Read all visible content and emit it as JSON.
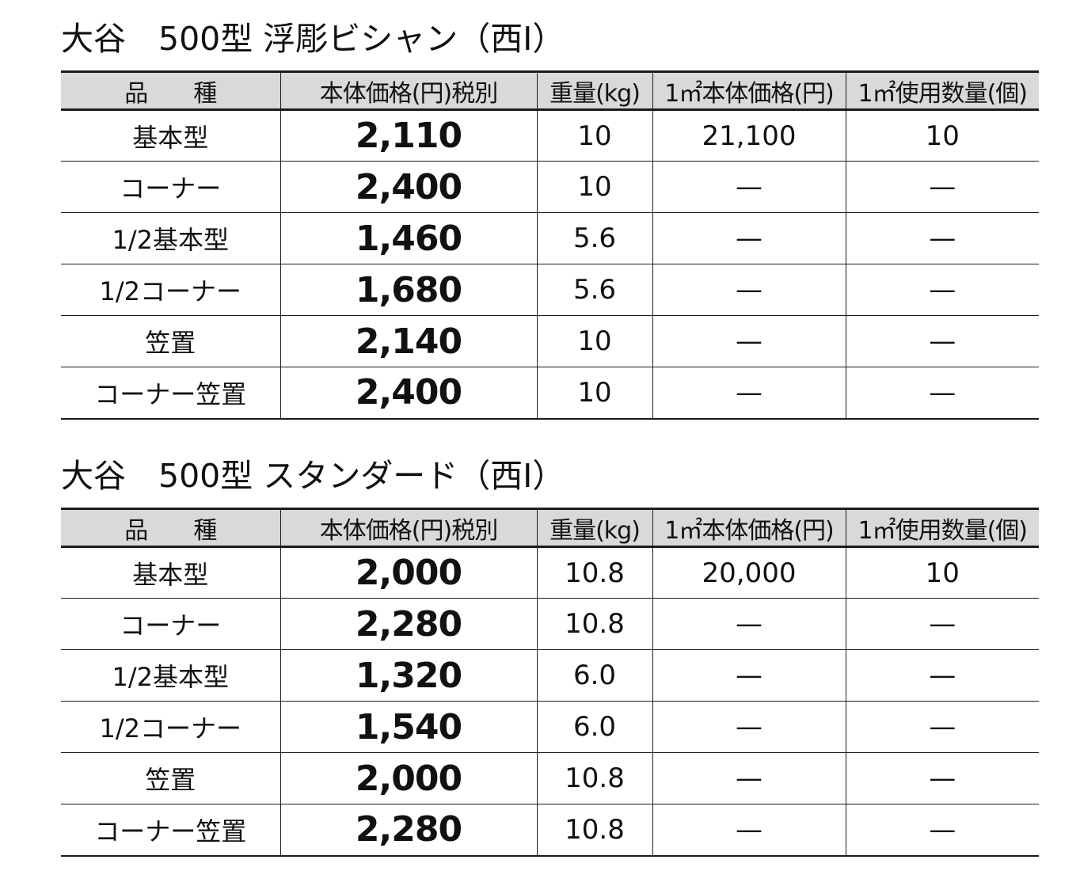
{
  "sections": [
    {
      "title": "大谷　500型 浮彫ビシャン（西Ⅰ）",
      "headers": [
        "品　　種",
        "本体価格(円)税別",
        "重量(kg)",
        "1㎡本体価格(円)",
        "1㎡使用数量(個)"
      ],
      "rows": [
        {
          "name": "基本型",
          "price": "2,110",
          "weight": "10",
          "per_m2_price": "21,100",
          "per_m2_qty": "10"
        },
        {
          "name": "コーナー",
          "price": "2,400",
          "weight": "10",
          "per_m2_price": "—",
          "per_m2_qty": "—"
        },
        {
          "name": "1/2基本型",
          "price": "1,460",
          "weight": "5.6",
          "per_m2_price": "—",
          "per_m2_qty": "—"
        },
        {
          "name": "1/2コーナー",
          "price": "1,680",
          "weight": "5.6",
          "per_m2_price": "—",
          "per_m2_qty": "—"
        },
        {
          "name": "笠置",
          "price": "2,140",
          "weight": "10",
          "per_m2_price": "—",
          "per_m2_qty": "—"
        },
        {
          "name": "コーナー笠置",
          "price": "2,400",
          "weight": "10",
          "per_m2_price": "—",
          "per_m2_qty": "—"
        }
      ]
    },
    {
      "title": "大谷　500型 スタンダード（西Ⅰ）",
      "headers": [
        "品　　種",
        "本体価格(円)税別",
        "重量(kg)",
        "1㎡本体価格(円)",
        "1㎡使用数量(個)"
      ],
      "rows": [
        {
          "name": "基本型",
          "price": "2,000",
          "weight": "10.8",
          "per_m2_price": "20,000",
          "per_m2_qty": "10"
        },
        {
          "name": "コーナー",
          "price": "2,280",
          "weight": "10.8",
          "per_m2_price": "—",
          "per_m2_qty": "—"
        },
        {
          "name": "1/2基本型",
          "price": "1,320",
          "weight": "6.0",
          "per_m2_price": "—",
          "per_m2_qty": "—"
        },
        {
          "name": "1/2コーナー",
          "price": "1,540",
          "weight": "6.0",
          "per_m2_price": "—",
          "per_m2_qty": "—"
        },
        {
          "name": "笠置",
          "price": "2,000",
          "weight": "10.8",
          "per_m2_price": "—",
          "per_m2_qty": "—"
        },
        {
          "name": "コーナー笠置",
          "price": "2,280",
          "weight": "10.8",
          "per_m2_price": "—",
          "per_m2_qty": "—"
        }
      ]
    }
  ]
}
